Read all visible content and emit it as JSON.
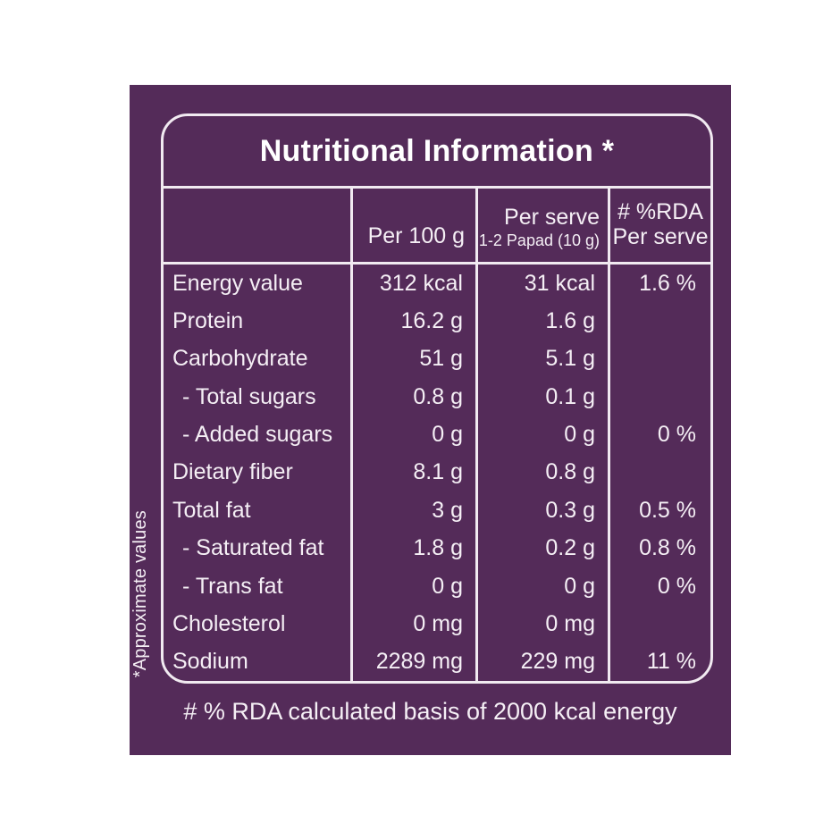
{
  "label": {
    "title": "Nutritional Information *",
    "side_note": "*Approximate values",
    "footnote": "# % RDA calculated basis of 2000 kcal energy",
    "colors": {
      "background": "#542B59",
      "line": "#F1EAF1",
      "text": "#F5EFF5"
    }
  },
  "table": {
    "columns": {
      "item": "",
      "per_100g": "Per 100 g",
      "per_serve": "Per serve",
      "per_serve_sub": "1-2 Papad (10 g)",
      "rda": "# %RDA",
      "rda_sub": "Per serve"
    },
    "rows": [
      {
        "label": "Energy value",
        "per_100g": "312 kcal",
        "per_serve": "31 kcal",
        "rda": "1.6 %"
      },
      {
        "label": "Protein",
        "per_100g": "16.2 g",
        "per_serve": "1.6 g",
        "rda": ""
      },
      {
        "label": "Carbohydrate",
        "per_100g": "51 g",
        "per_serve": "5.1 g",
        "rda": ""
      },
      {
        "label": "- Total sugars",
        "per_100g": "0.8 g",
        "per_serve": "0.1 g",
        "rda": ""
      },
      {
        "label": "- Added sugars",
        "per_100g": "0 g",
        "per_serve": "0 g",
        "rda": "0 %"
      },
      {
        "label": "Dietary fiber",
        "per_100g": "8.1 g",
        "per_serve": "0.8 g",
        "rda": ""
      },
      {
        "label": "Total fat",
        "per_100g": "3 g",
        "per_serve": "0.3 g",
        "rda": "0.5 %"
      },
      {
        "label": "- Saturated fat",
        "per_100g": "1.8 g",
        "per_serve": "0.2 g",
        "rda": "0.8 %"
      },
      {
        "label": "- Trans fat",
        "per_100g": "0 g",
        "per_serve": "0 g",
        "rda": "0 %"
      },
      {
        "label": "Cholesterol",
        "per_100g": "0 mg",
        "per_serve": "0 mg",
        "rda": ""
      },
      {
        "label": "Sodium",
        "per_100g": "2289 mg",
        "per_serve": "229 mg",
        "rda": "11 %"
      }
    ]
  }
}
